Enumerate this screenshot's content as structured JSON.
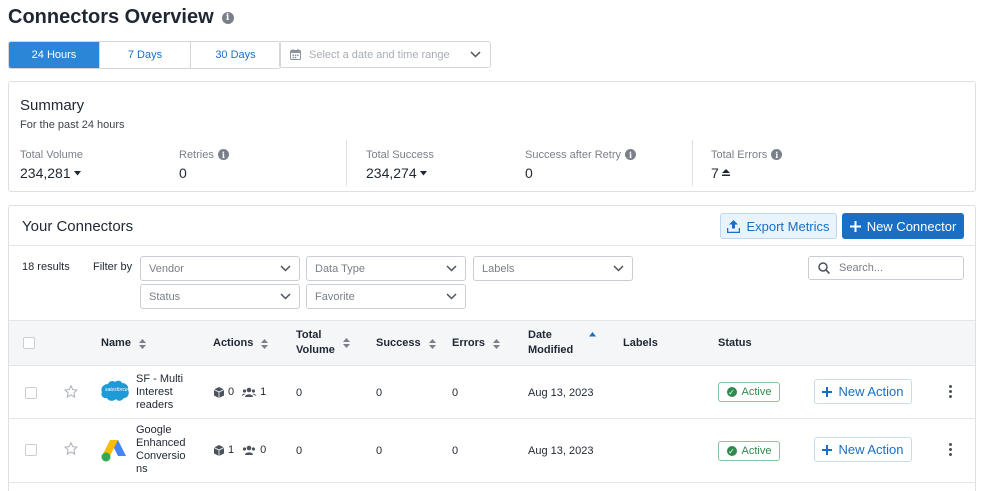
{
  "page": {
    "title": "Connectors Overview"
  },
  "range_tabs": [
    {
      "label": "24 Hours",
      "active": true
    },
    {
      "label": "7 Days",
      "active": false
    },
    {
      "label": "30 Days",
      "active": false
    }
  ],
  "date_picker": {
    "placeholder": "Select a date and time range"
  },
  "summary": {
    "title": "Summary",
    "subtitle": "For the past 24 hours",
    "stats": {
      "total_volume": {
        "label": "Total Volume",
        "value": "234,281"
      },
      "retries": {
        "label": "Retries",
        "value": "0"
      },
      "total_success": {
        "label": "Total Success",
        "value": "234,274"
      },
      "success_after_retry": {
        "label": "Success after Retry",
        "value": "0"
      },
      "total_errors": {
        "label": "Total Errors",
        "value": "7"
      }
    }
  },
  "connectors": {
    "title": "Your Connectors",
    "export_label": "Export Metrics",
    "new_label": "New Connector",
    "results": "18 results",
    "filter_by": "Filter by",
    "filters": {
      "vendor": "Vendor",
      "data_type": "Data Type",
      "labels": "Labels",
      "status": "Status",
      "favorite": "Favorite"
    },
    "search_placeholder": "Search...",
    "columns": {
      "name": "Name",
      "actions": "Actions",
      "total_volume_1": "Total",
      "total_volume_2": "Volume",
      "success": "Success",
      "errors": "Errors",
      "date_modified_1": "Date",
      "date_modified_2": "Modified",
      "labels": "Labels",
      "status": "Status"
    },
    "rows": [
      {
        "name_lines": [
          "SF - Multi",
          "Interest",
          "readers"
        ],
        "logo": "salesforce-logo",
        "logo_text": "salesforce",
        "actions": "0",
        "users": "1",
        "total_volume": "0",
        "success": "0",
        "errors": "0",
        "date_modified": "Aug 13, 2023",
        "status": "Active",
        "action_label": "New Action"
      },
      {
        "name_lines": [
          "Google",
          "Enhanced",
          "Conversio",
          "ns"
        ],
        "logo": "google-ads-logo",
        "actions": "1",
        "users": "0",
        "total_volume": "0",
        "success": "0",
        "errors": "0",
        "date_modified": "Aug 13, 2023",
        "status": "Active",
        "action_label": "New Action"
      }
    ]
  },
  "colors": {
    "accent": "#1a6fc4",
    "active_tab": "#2b86d8",
    "success": "#2f8a4f"
  }
}
